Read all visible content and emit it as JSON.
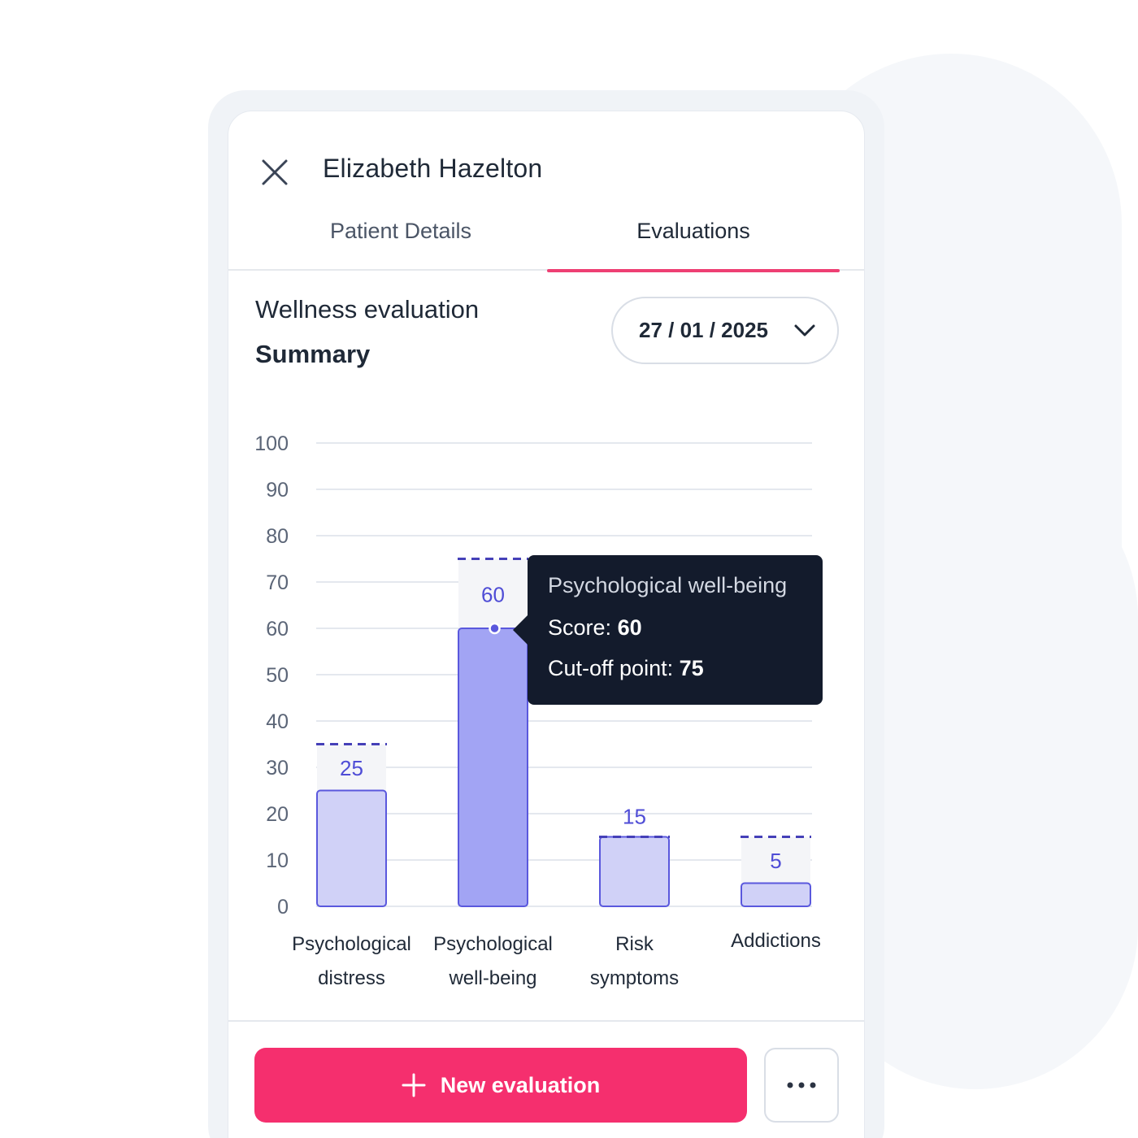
{
  "header": {
    "patient_name": "Elizabeth Hazelton",
    "close_icon": "close-icon"
  },
  "tabs": [
    {
      "label": "Patient Details",
      "active": false
    },
    {
      "label": "Evaluations",
      "active": true
    }
  ],
  "evaluation": {
    "title": "Wellness evaluation",
    "subtitle": "Summary",
    "date": "27 / 01 / 2025"
  },
  "colors": {
    "accent": "#f52f6e",
    "tab_underline": "#ee3f73",
    "bar_fill": "#d0d1f7",
    "bar_fill_active": "#a2a4f4",
    "bar_stroke": "#5a58dd",
    "value_label": "#4f4dd6",
    "tooltip_bg": "#131b2c"
  },
  "chart_data": {
    "type": "bar",
    "categories": [
      [
        "Psychological",
        "distress"
      ],
      [
        "Psychological",
        "well-being"
      ],
      [
        "Risk",
        "symptoms"
      ],
      [
        "Addictions"
      ]
    ],
    "values": [
      25,
      60,
      15,
      5
    ],
    "cutoffs": [
      35,
      75,
      15,
      15
    ],
    "active_index": 1,
    "ylim": [
      0,
      100
    ],
    "yticks": [
      0,
      10,
      20,
      30,
      40,
      50,
      60,
      70,
      80,
      90,
      100
    ],
    "grid": true,
    "xlabel": "",
    "ylabel": ""
  },
  "tooltip": {
    "title": "Psychological well-being",
    "score_label": "Score:",
    "score_value": "60",
    "cutoff_label": "Cut-off point:",
    "cutoff_value": "75"
  },
  "actions": {
    "new_evaluation": "New evaluation",
    "more_icon": "more-horizontal-icon"
  }
}
